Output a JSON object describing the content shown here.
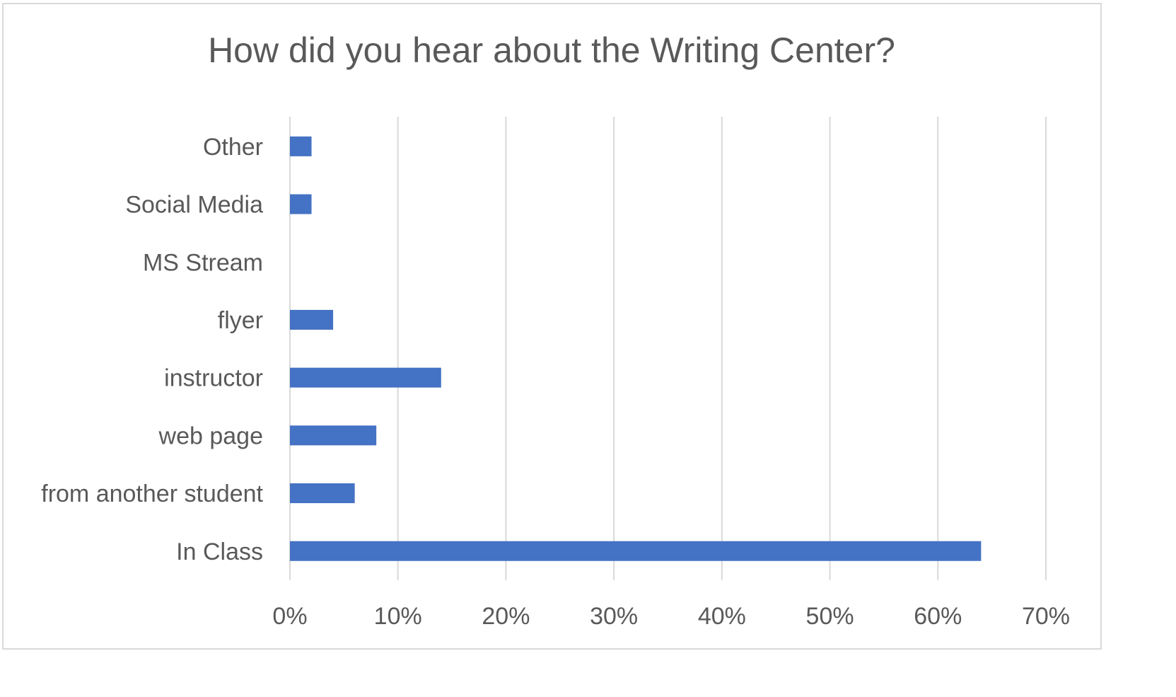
{
  "chart_data": {
    "type": "bar",
    "orientation": "horizontal",
    "title": "How did you hear about the Writing Center?",
    "xlabel": "",
    "ylabel": "",
    "categories": [
      "Other",
      "Social Media",
      "MS Stream",
      "flyer",
      "instructor",
      "web page",
      "from another student",
      "In Class"
    ],
    "values": [
      2,
      2,
      0,
      4,
      14,
      8,
      6,
      64
    ],
    "value_unit": "%",
    "xlim": [
      0,
      70
    ],
    "x_ticks": [
      "0%",
      "10%",
      "20%",
      "30%",
      "40%",
      "50%",
      "60%",
      "70%"
    ],
    "grid": "vertical",
    "legend": "none",
    "bar_color": "#4472c4",
    "grid_color": "#d9d9d9",
    "text_color": "#595959"
  }
}
